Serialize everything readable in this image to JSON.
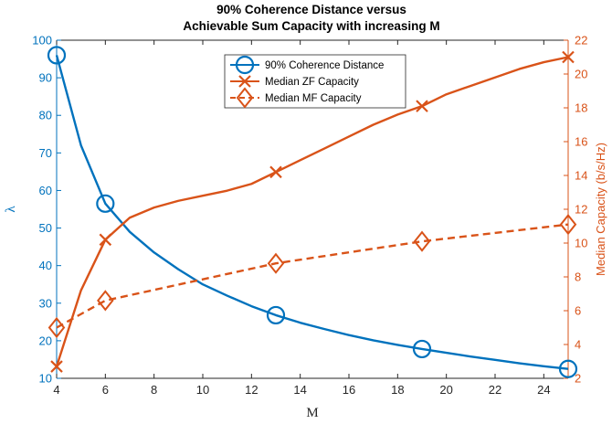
{
  "chart_data": {
    "type": "line",
    "title": [
      "90% Coherence Distance versus",
      "Achievable Sum Capacity with increasing M"
    ],
    "xlabel": "M",
    "ylabel_left": "λ",
    "ylabel_right": "Median Capacity (b/s/Hz)",
    "xlim": [
      4,
      25
    ],
    "ylim_left": [
      10,
      100
    ],
    "ylim_right": [
      2,
      22
    ],
    "xticks": [
      "4",
      "6",
      "8",
      "10",
      "12",
      "14",
      "16",
      "18",
      "20",
      "22",
      "24"
    ],
    "yticks_left": [
      "10",
      "20",
      "30",
      "40",
      "50",
      "60",
      "70",
      "80",
      "90",
      "100"
    ],
    "yticks_right": [
      "2",
      "4",
      "6",
      "8",
      "10",
      "12",
      "14",
      "16",
      "18",
      "20",
      "22"
    ],
    "grid": false,
    "legend_position": "top-center",
    "colors": {
      "left_axis": "#0072BD",
      "right_axis": "#D95319"
    },
    "series": [
      {
        "name": "90% Coherence Distance",
        "axis": "left",
        "line": "solid",
        "marker": "circle",
        "color": "#0072BD",
        "x": [
          4,
          5,
          6,
          7,
          8,
          9,
          10,
          11,
          12,
          13,
          14,
          15,
          16,
          17,
          18,
          19,
          20,
          21,
          22,
          23,
          24,
          25
        ],
        "y": [
          96,
          72,
          56.5,
          49,
          43.5,
          39,
          35,
          32,
          29.2,
          26.8,
          24.8,
          23.1,
          21.5,
          20.1,
          18.9,
          17.8,
          16.8,
          15.8,
          14.9,
          14,
          13.2,
          12.5
        ],
        "marker_x": [
          4,
          6,
          13,
          19,
          25
        ],
        "marker_y": [
          96,
          56.5,
          26.8,
          17.8,
          12.5
        ]
      },
      {
        "name": "Median ZF Capacity",
        "axis": "right",
        "line": "solid",
        "marker": "x",
        "color": "#D95319",
        "x": [
          4,
          5,
          6,
          7,
          8,
          9,
          10,
          11,
          12,
          13,
          14,
          15,
          16,
          17,
          18,
          19,
          20,
          21,
          22,
          23,
          24,
          25
        ],
        "y": [
          2.7,
          7.2,
          10.2,
          11.5,
          12.1,
          12.5,
          12.8,
          13.1,
          13.5,
          14.2,
          14.9,
          15.6,
          16.3,
          17,
          17.6,
          18.1,
          18.8,
          19.3,
          19.8,
          20.3,
          20.7,
          21
        ],
        "marker_x": [
          4,
          6,
          13,
          19,
          25
        ],
        "marker_y": [
          2.7,
          10.2,
          14.2,
          18.1,
          21
        ]
      },
      {
        "name": "Median MF Capacity",
        "axis": "right",
        "line": "dashed",
        "marker": "diamond",
        "color": "#D95319",
        "x": [
          4,
          6,
          13,
          19,
          25
        ],
        "y": [
          5,
          6.6,
          8.8,
          10.1,
          11.1
        ],
        "marker_x": [
          4,
          6,
          13,
          19,
          25
        ],
        "marker_y": [
          5,
          6.6,
          8.8,
          10.1,
          11.1
        ]
      }
    ]
  }
}
